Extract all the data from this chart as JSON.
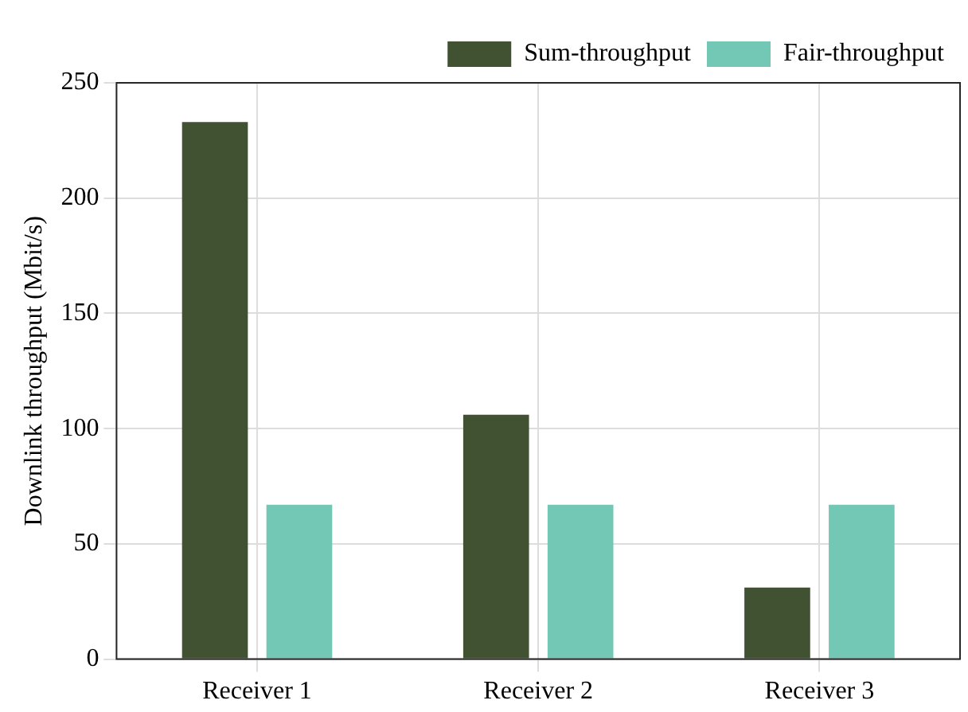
{
  "chart_data": {
    "type": "bar",
    "ylabel": "Downlink throughput (Mbit/s)",
    "categories": [
      "Receiver 1",
      "Receiver 2",
      "Receiver 3"
    ],
    "series": [
      {
        "name": "Sum-throughput",
        "color": "#415233",
        "values": [
          233,
          106,
          31
        ]
      },
      {
        "name": "Fair-throughput",
        "color": "#72c8b5",
        "values": [
          67,
          67,
          67
        ]
      }
    ],
    "ylim": [
      0,
      250
    ],
    "yticks": [
      0,
      50,
      100,
      150,
      200,
      250
    ],
    "grid": true,
    "legend": "top right"
  }
}
